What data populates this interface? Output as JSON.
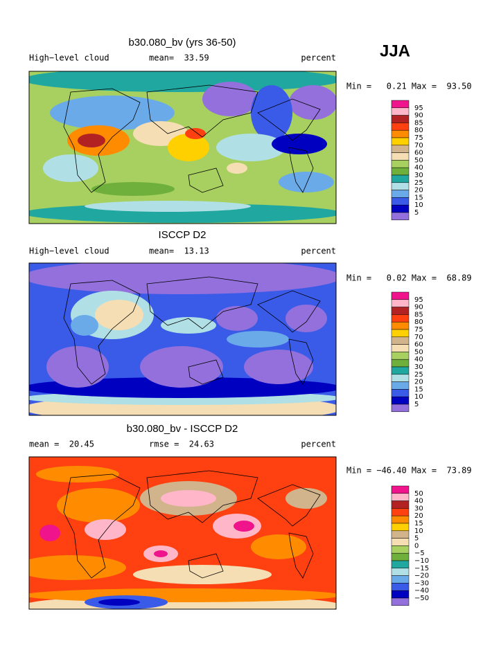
{
  "title": "JJA",
  "panels": [
    {
      "title": "b30.080_bv (yrs 36-50)",
      "left": "High−level cloud",
      "center": "mean=  33.59",
      "right": "percent",
      "stats": "Min =   0.21 Max =  93.50",
      "colorbar": {
        "labels": [
          "95",
          "90",
          "85",
          "80",
          "75",
          "70",
          "60",
          "50",
          "40",
          "30",
          "25",
          "20",
          "15",
          "10",
          "5"
        ],
        "colors": [
          "#f0148c",
          "#ffb6c8",
          "#b22222",
          "#ff4010",
          "#ff8c00",
          "#ffd000",
          "#d2b48c",
          "#f5deb3",
          "#a8d060",
          "#6fb03c",
          "#20a8a0",
          "#b0e0e6",
          "#6aaae8",
          "#3a5ae8",
          "#0000c0",
          "#9370db"
        ]
      }
    },
    {
      "title": "ISCCP D2",
      "left": "High−level cloud",
      "center": "mean=  13.13",
      "right": "percent",
      "stats": "Min =   0.02 Max =  68.89",
      "colorbar": {
        "labels": [
          "95",
          "90",
          "85",
          "80",
          "75",
          "70",
          "60",
          "50",
          "40",
          "30",
          "25",
          "20",
          "15",
          "10",
          "5"
        ],
        "colors": [
          "#f0148c",
          "#ffb6c8",
          "#b22222",
          "#ff4010",
          "#ff8c00",
          "#ffd000",
          "#d2b48c",
          "#f5deb3",
          "#a8d060",
          "#6fb03c",
          "#20a8a0",
          "#b0e0e6",
          "#6aaae8",
          "#3a5ae8",
          "#0000c0",
          "#9370db"
        ]
      }
    },
    {
      "title": "b30.080_bv - ISCCP D2",
      "left": "mean =  20.45",
      "center": "rmse =  24.63",
      "right": "percent",
      "stats": "Min = −46.40 Max =  73.89",
      "colorbar": {
        "labels": [
          "50",
          "40",
          "30",
          "20",
          "15",
          "10",
          "5",
          "0",
          "−5",
          "−10",
          "−15",
          "−20",
          "−30",
          "−40",
          "−50"
        ],
        "colors": [
          "#f0148c",
          "#ffb6c8",
          "#b22222",
          "#ff4010",
          "#ff8c00",
          "#ffd000",
          "#d2b48c",
          "#f5deb3",
          "#a8d060",
          "#6fb03c",
          "#20a8a0",
          "#b0e0e6",
          "#6aaae8",
          "#3a5ae8",
          "#0000c0",
          "#9370db"
        ]
      }
    }
  ]
}
